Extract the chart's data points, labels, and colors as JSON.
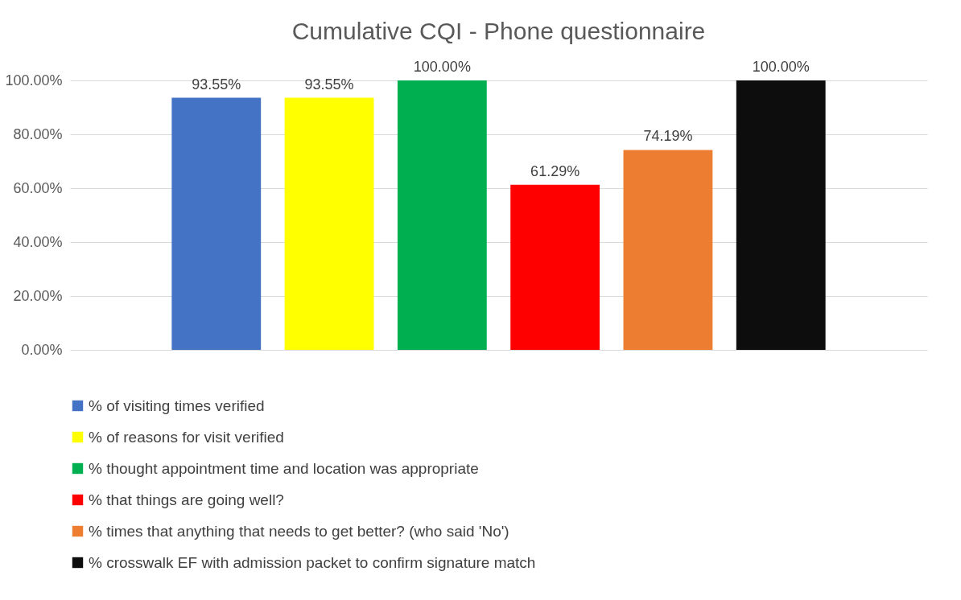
{
  "chart_data": {
    "type": "bar",
    "title": "Cumulative CQI - Phone questionnaire",
    "categories": [
      null
    ],
    "series": [
      {
        "name": "% of visiting times verified",
        "color": "#4472c4",
        "values": [
          93.55
        ],
        "value_labels": [
          "93.55%"
        ]
      },
      {
        "name": "% of reasons for visit verified",
        "color": "#ffff00",
        "values": [
          93.55
        ],
        "value_labels": [
          "93.55%"
        ]
      },
      {
        "name": "%  thought appointment time and location was appropriate",
        "color": "#00b050",
        "values": [
          100
        ],
        "value_labels": [
          "100.00%"
        ]
      },
      {
        "name": "% that things are going well?",
        "color": "#ff0000",
        "values": [
          61.29
        ],
        "value_labels": [
          "61.29%"
        ]
      },
      {
        "name": "% times that anything that needs to get better? (who said 'No')",
        "color": "#ed7d31",
        "values": [
          74.19
        ],
        "value_labels": [
          "74.19%"
        ]
      },
      {
        "name": "%  crosswalk EF with admission packet to confirm signature match",
        "color": "#0d0d0d",
        "values": [
          100
        ],
        "value_labels": [
          "100.00%"
        ]
      }
    ],
    "ylim": [
      0,
      100
    ],
    "yticks": [
      {
        "value": 0,
        "label": "0.00%"
      },
      {
        "value": 20,
        "label": "20.00%"
      },
      {
        "value": 40,
        "label": "40.00%"
      },
      {
        "value": 60,
        "label": "60.00%"
      },
      {
        "value": 80,
        "label": "80.00%"
      },
      {
        "value": 100,
        "label": "100.00%"
      }
    ],
    "grid": "y",
    "legend": "bottom"
  }
}
